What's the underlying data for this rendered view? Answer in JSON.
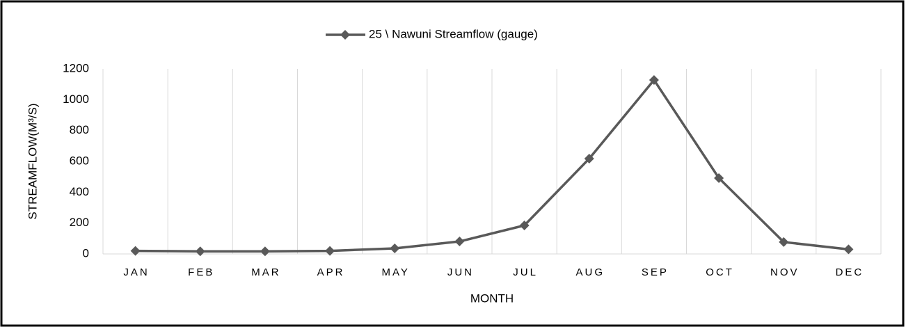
{
  "chart_data": {
    "type": "line",
    "x_label": "MONTH",
    "y_label": "STREAMFLOW(M³/S)",
    "categories": [
      "JAN",
      "FEB",
      "MAR",
      "APR",
      "MAY",
      "JUN",
      "JUL",
      "AUG",
      "SEP",
      "OCT",
      "NOV",
      "DEC"
    ],
    "series": [
      {
        "name": "25 \\ Nawuni Streamflow (gauge)",
        "color": "#595959",
        "values": [
          20,
          17,
          17,
          20,
          36,
          81,
          185,
          618,
          1128,
          492,
          77,
          30
        ]
      }
    ],
    "ylim": [
      0,
      1200
    ],
    "yticks": [
      0,
      200,
      400,
      600,
      800,
      1000,
      1200
    ],
    "grid": true,
    "legend": "top"
  }
}
